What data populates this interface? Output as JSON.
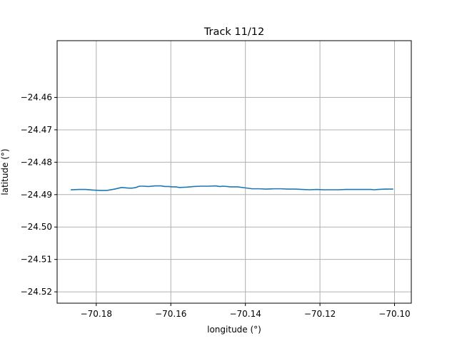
{
  "chart_data": {
    "type": "line",
    "title": "Track 11/12",
    "xlabel": "longitude (°)",
    "ylabel": "latitude (°)",
    "xlim": [
      -70.1905,
      -70.0955
    ],
    "ylim": [
      -24.5235,
      -24.4425
    ],
    "grid": true,
    "x_ticks": [
      -70.18,
      -70.16,
      -70.14,
      -70.12,
      -70.1
    ],
    "x_tick_labels": [
      "−70.18",
      "−70.16",
      "−70.14",
      "−70.12",
      "−70.10"
    ],
    "y_ticks": [
      -24.46,
      -24.47,
      -24.48,
      -24.49,
      -24.5,
      -24.51,
      -24.52
    ],
    "y_tick_labels": [
      "−24.46",
      "−24.47",
      "−24.48",
      "−24.49",
      "−24.50",
      "−24.51",
      "−24.52"
    ],
    "colors": {
      "line": "#1f77b4",
      "grid": "#b0b0b0"
    },
    "series": [
      {
        "x": [
          -70.1867,
          -70.1847,
          -70.1829,
          -70.1808,
          -70.179,
          -70.1771,
          -70.1751,
          -70.1732,
          -70.1713,
          -70.1703,
          -70.1694,
          -70.1684,
          -70.1674,
          -70.166,
          -70.1642,
          -70.1626,
          -70.1616,
          -70.1606,
          -70.1597,
          -70.1587,
          -70.1577,
          -70.1557,
          -70.1538,
          -70.1519,
          -70.1499,
          -70.148,
          -70.1469,
          -70.146,
          -70.1449,
          -70.1441,
          -70.1421,
          -70.1402,
          -70.1382,
          -70.1363,
          -70.1344,
          -70.1324,
          -70.1305,
          -70.1286,
          -70.1266,
          -70.1247,
          -70.1228,
          -70.1209,
          -70.1189,
          -70.117,
          -70.115,
          -70.1131,
          -70.1112,
          -70.1093,
          -70.1074,
          -70.1064,
          -70.1054,
          -70.1044,
          -70.1025,
          -70.1005
        ],
        "y": [
          -24.4885,
          -24.4884,
          -24.4884,
          -24.4886,
          -24.4887,
          -24.4887,
          -24.4883,
          -24.4878,
          -24.488,
          -24.488,
          -24.4878,
          -24.4874,
          -24.4874,
          -24.4875,
          -24.4873,
          -24.4873,
          -24.4875,
          -24.4875,
          -24.4876,
          -24.4876,
          -24.4878,
          -24.4877,
          -24.4875,
          -24.4874,
          -24.4874,
          -24.4873,
          -24.4875,
          -24.4874,
          -24.4875,
          -24.4876,
          -24.4876,
          -24.4879,
          -24.4882,
          -24.4882,
          -24.4883,
          -24.4882,
          -24.4882,
          -24.4883,
          -24.4883,
          -24.4884,
          -24.4885,
          -24.4884,
          -24.4885,
          -24.4885,
          -24.4885,
          -24.4884,
          -24.4884,
          -24.4884,
          -24.4884,
          -24.4884,
          -24.4885,
          -24.4884,
          -24.4883,
          -24.4883
        ]
      }
    ]
  }
}
